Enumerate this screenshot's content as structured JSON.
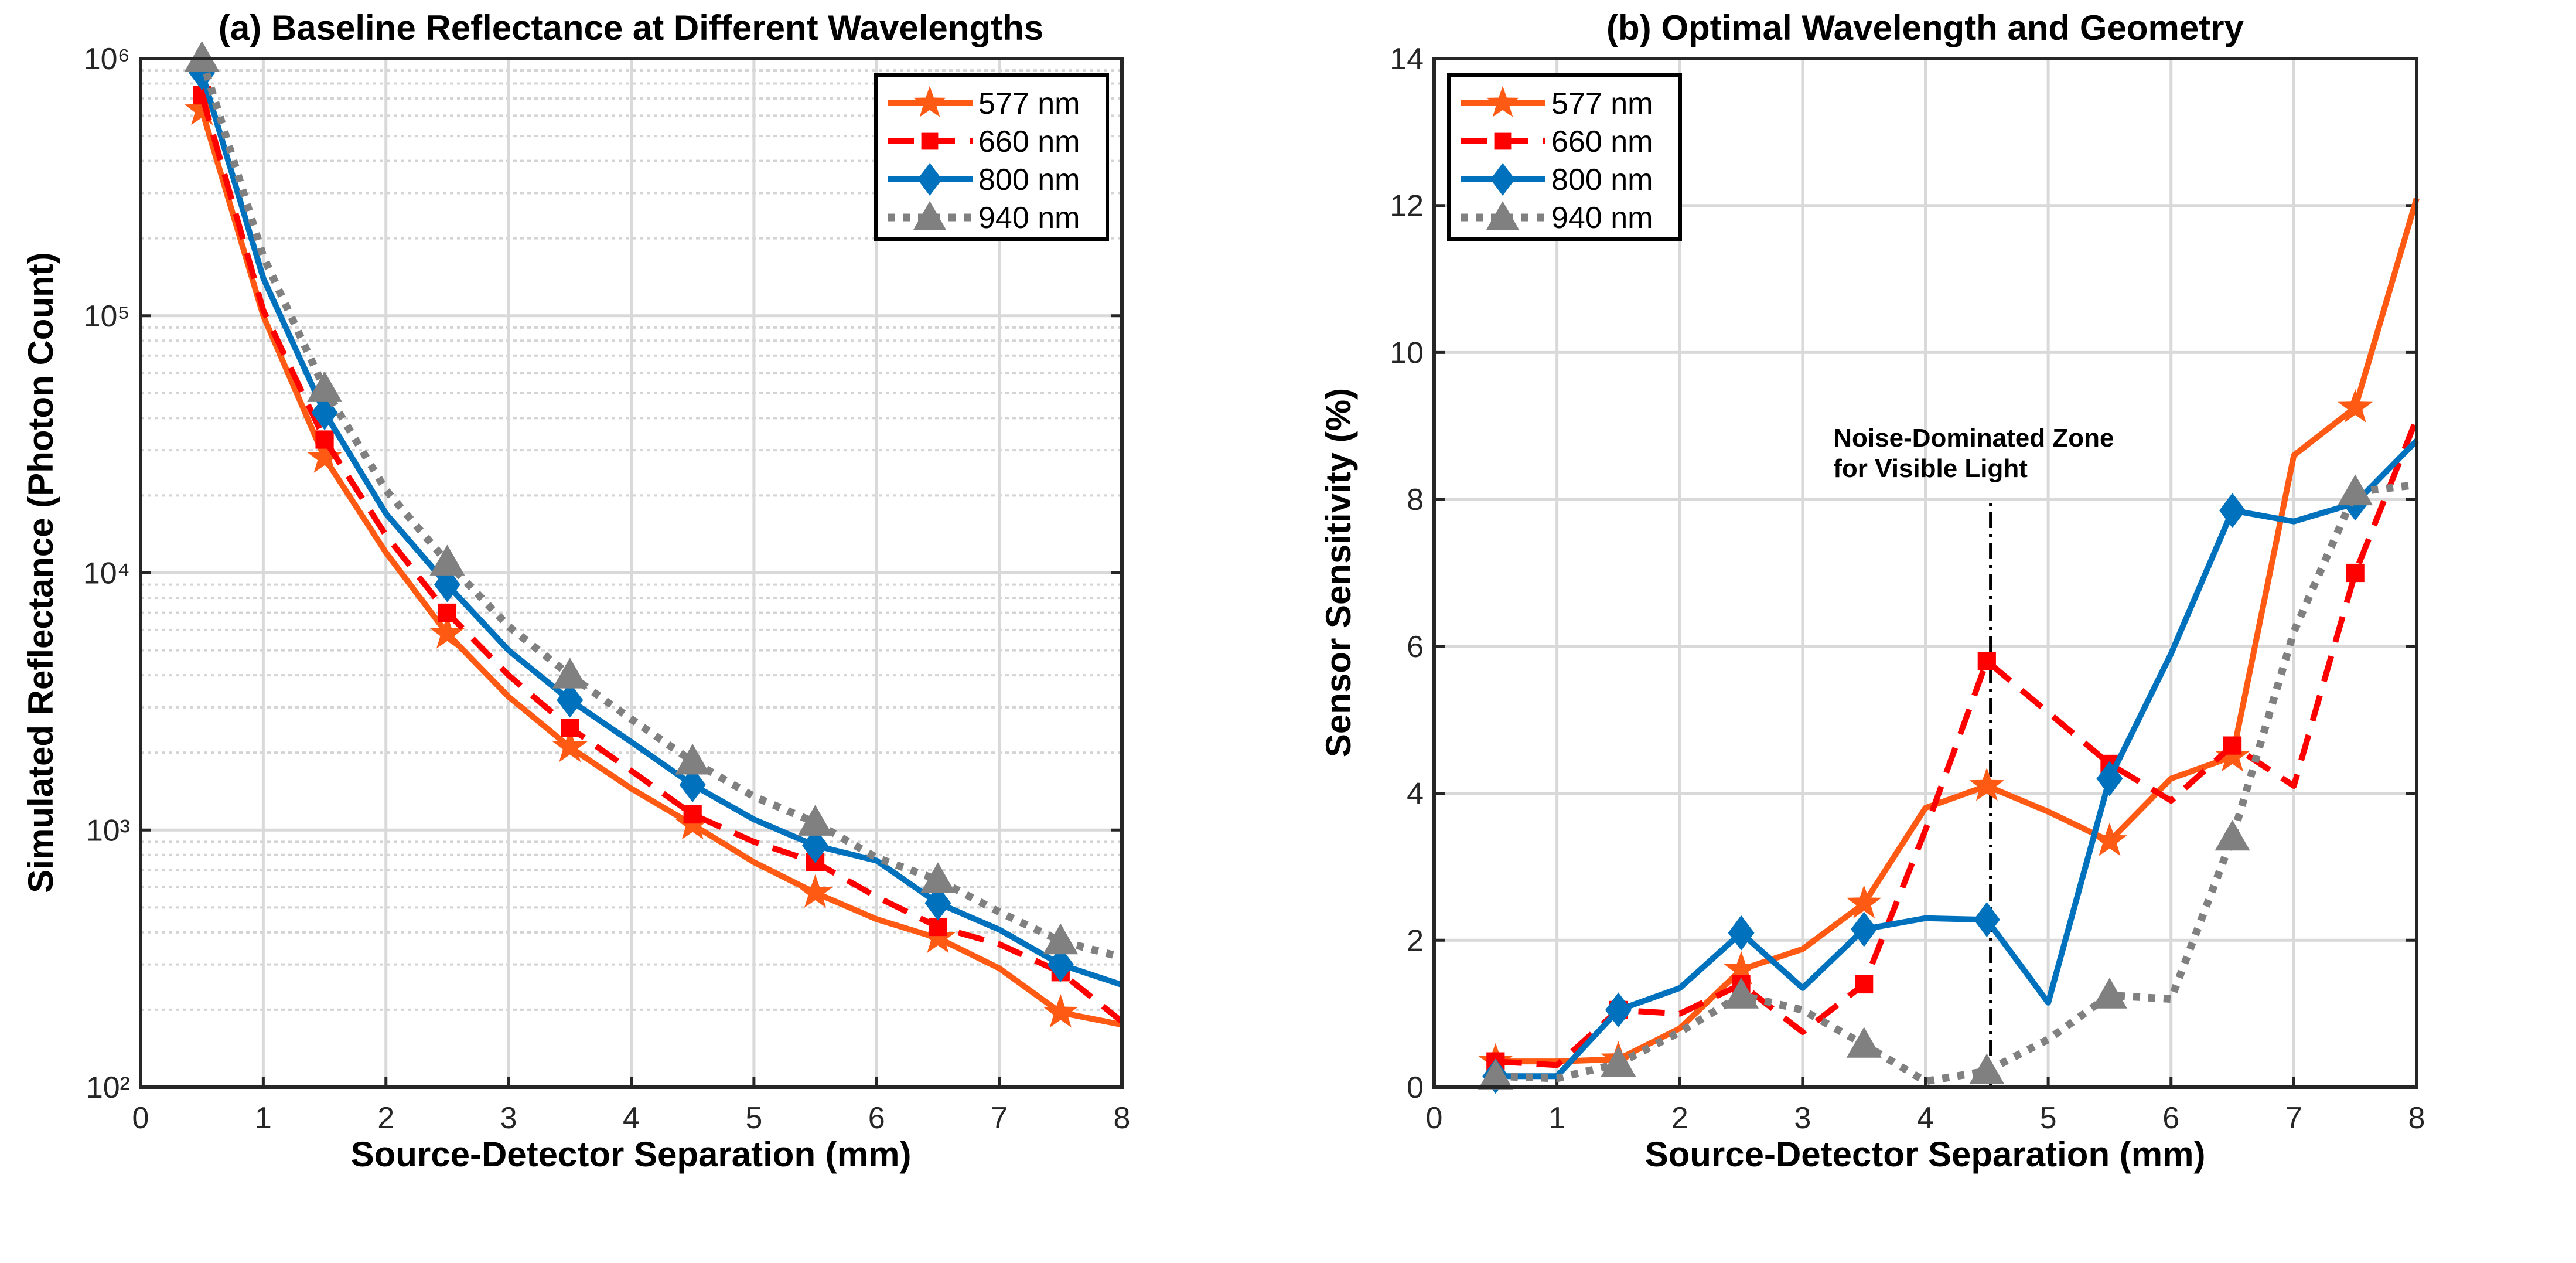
{
  "chart_data": [
    {
      "type": "line",
      "title": "(a) Baseline Reflectance at Different Wavelengths",
      "xlabel": "Source-Detector Separation (mm)",
      "ylabel": "Simulated Reflectance (Photon Count)",
      "xlim": [
        0,
        8
      ],
      "ylim": [
        100,
        1000000
      ],
      "yscale": "log",
      "grid": true,
      "legend_placement": "top-right",
      "xticks": [
        0,
        1,
        2,
        3,
        4,
        5,
        6,
        7,
        8
      ],
      "xtick_labels": [
        "0",
        "1",
        "2",
        "3",
        "4",
        "5",
        "6",
        "7",
        "8"
      ],
      "yticks": [
        100,
        1000,
        10000,
        100000,
        1000000
      ],
      "ytick_labels": [
        "10²",
        "10³",
        "10⁴",
        "10⁵",
        "10⁶"
      ],
      "x": [
        0.5,
        1,
        1.5,
        2,
        2.5,
        3,
        3.5,
        4,
        4.5,
        5,
        5.5,
        6,
        6.5,
        7,
        7.5,
        8
      ],
      "series": [
        {
          "name": "577 nm",
          "color": "#FF5A14",
          "style": "solid",
          "marker": "star",
          "values": [
            630000,
            100000,
            28000,
            12000,
            5800,
            3300,
            2100,
            1450,
            1050,
            750,
            570,
            450,
            380,
            290,
            195,
            175
          ]
        },
        {
          "name": "660 nm",
          "color": "#FF0000",
          "style": "dashed",
          "marker": "square",
          "values": [
            720000,
            105000,
            33000,
            14000,
            7000,
            4000,
            2500,
            1700,
            1150,
            900,
            750,
            550,
            420,
            360,
            280,
            180
          ]
        },
        {
          "name": "800 nm",
          "color": "#0072BD",
          "style": "solid",
          "marker": "diamond",
          "values": [
            880000,
            140000,
            42000,
            17000,
            9000,
            5000,
            3200,
            2200,
            1500,
            1100,
            870,
            760,
            520,
            410,
            300,
            250
          ]
        },
        {
          "name": "940 nm",
          "color": "#808080",
          "style": "dotted",
          "marker": "triangle",
          "values": [
            1000000,
            170000,
            52000,
            21000,
            11000,
            6200,
            4000,
            2700,
            1850,
            1350,
            1070,
            780,
            640,
            480,
            370,
            320
          ]
        }
      ]
    },
    {
      "type": "line",
      "title": "(b) Optimal Wavelength and Geometry",
      "xlabel": "Source-Detector Separation (mm)",
      "ylabel": "Sensor Sensitivity (%)",
      "xlim": [
        0,
        8
      ],
      "ylim": [
        0,
        14
      ],
      "yscale": "linear",
      "grid": true,
      "legend_placement": "top-left",
      "xticks": [
        0,
        1,
        2,
        3,
        4,
        5,
        6,
        7,
        8
      ],
      "xtick_labels": [
        "0",
        "1",
        "2",
        "3",
        "4",
        "5",
        "6",
        "7",
        "8"
      ],
      "yticks": [
        0,
        2,
        4,
        6,
        8,
        10,
        12,
        14
      ],
      "ytick_labels": [
        "0",
        "2",
        "4",
        "6",
        "8",
        "10",
        "12",
        "14"
      ],
      "annotation": {
        "lines": [
          "Noise-Dominated Zone",
          "for Visible Light"
        ],
        "x": 4.53,
        "y_range": [
          0,
          8
        ]
      },
      "x": [
        0.5,
        1,
        1.5,
        2,
        2.5,
        3,
        3.5,
        4,
        4.5,
        5,
        5.5,
        6,
        6.5,
        7,
        7.5,
        8
      ],
      "series": [
        {
          "name": "577 nm",
          "color": "#FF5A14",
          "style": "solid",
          "marker": "star",
          "values": [
            0.35,
            0.35,
            0.38,
            0.8,
            1.6,
            1.88,
            2.5,
            3.8,
            4.1,
            3.75,
            3.35,
            4.2,
            4.5,
            8.6,
            9.25,
            12.1
          ]
        },
        {
          "name": "660 nm",
          "color": "#FF0000",
          "style": "dashed",
          "marker": "square",
          "values": [
            0.35,
            0.3,
            1.05,
            1.0,
            1.4,
            0.75,
            1.4,
            3.5,
            5.8,
            5.1,
            4.4,
            3.9,
            4.65,
            4.1,
            7.0,
            9.1
          ]
        },
        {
          "name": "800 nm",
          "color": "#0072BD",
          "style": "solid",
          "marker": "diamond",
          "values": [
            0.15,
            0.15,
            1.05,
            1.35,
            2.1,
            1.35,
            2.15,
            2.3,
            2.28,
            1.15,
            4.2,
            5.9,
            7.85,
            7.7,
            7.95,
            8.8
          ]
        },
        {
          "name": "940 nm",
          "color": "#808080",
          "style": "dotted",
          "marker": "triangle",
          "values": [
            0.15,
            0.12,
            0.32,
            0.75,
            1.25,
            1.05,
            0.58,
            0.08,
            0.22,
            0.65,
            1.25,
            1.2,
            3.4,
            6.2,
            8.1,
            8.2
          ]
        }
      ]
    }
  ]
}
